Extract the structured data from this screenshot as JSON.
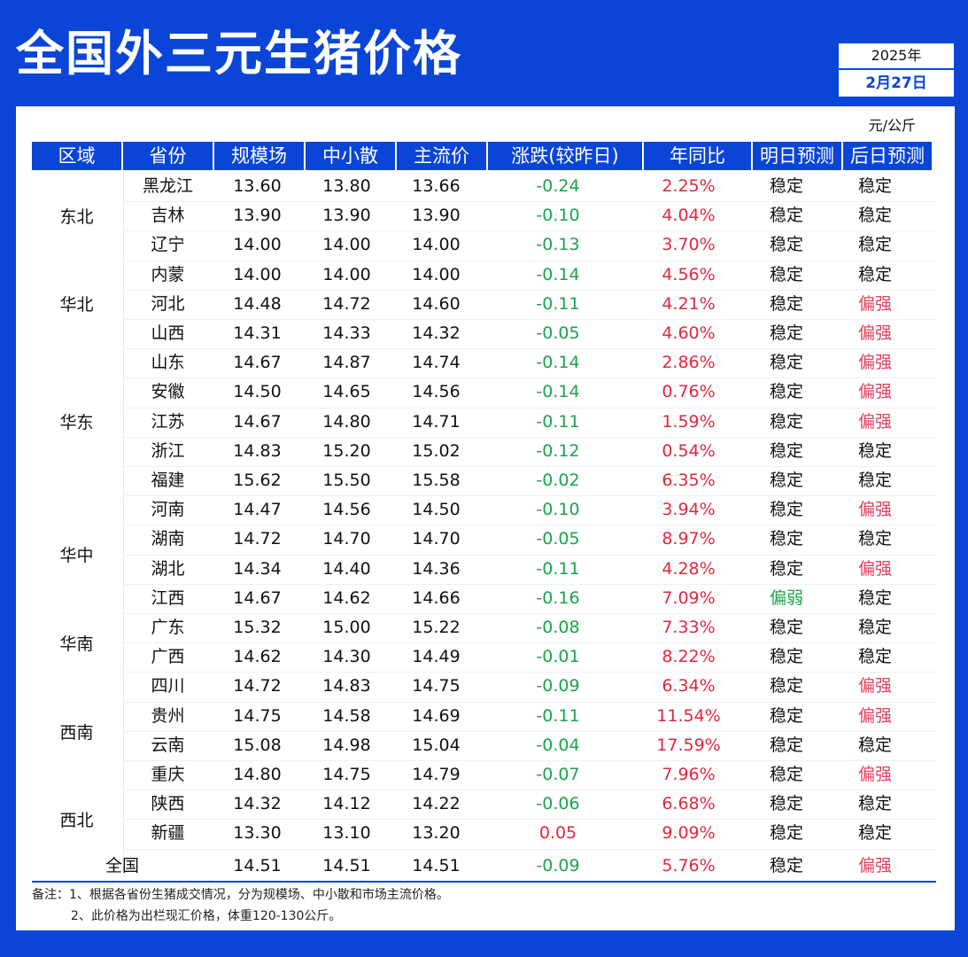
{
  "title": "全国外三元生猪价格",
  "date": {
    "year": "2025年",
    "day": "2月27日"
  },
  "unit": "元/公斤",
  "headers": [
    "区域",
    "省份",
    "规模场",
    "中小散",
    "主流价",
    "涨跌(较昨日)",
    "年同比",
    "明日预测",
    "后日预测"
  ],
  "regions": [
    {
      "name": "东北",
      "top": 36
    },
    {
      "name": "华北",
      "top": 135
    },
    {
      "name": "华东",
      "top": 268
    },
    {
      "name": "华中",
      "top": 418
    },
    {
      "name": "华南",
      "top": 518
    },
    {
      "name": "西南",
      "top": 618
    },
    {
      "name": "西北",
      "top": 717
    }
  ],
  "rows": [
    {
      "province": "黑龙江",
      "scale": "13.60",
      "small": "13.80",
      "main": "13.66",
      "change": "-0.24",
      "yoy": "2.25%",
      "tomorrow": "稳定",
      "after": "稳定"
    },
    {
      "province": "吉林",
      "scale": "13.90",
      "small": "13.90",
      "main": "13.90",
      "change": "-0.10",
      "yoy": "4.04%",
      "tomorrow": "稳定",
      "after": "稳定"
    },
    {
      "province": "辽宁",
      "scale": "14.00",
      "small": "14.00",
      "main": "14.00",
      "change": "-0.13",
      "yoy": "3.70%",
      "tomorrow": "稳定",
      "after": "稳定"
    },
    {
      "province": "内蒙",
      "scale": "14.00",
      "small": "14.00",
      "main": "14.00",
      "change": "-0.14",
      "yoy": "4.56%",
      "tomorrow": "稳定",
      "after": "稳定"
    },
    {
      "province": "河北",
      "scale": "14.48",
      "small": "14.72",
      "main": "14.60",
      "change": "-0.11",
      "yoy": "4.21%",
      "tomorrow": "稳定",
      "after": "偏强"
    },
    {
      "province": "山西",
      "scale": "14.31",
      "small": "14.33",
      "main": "14.32",
      "change": "-0.05",
      "yoy": "4.60%",
      "tomorrow": "稳定",
      "after": "偏强"
    },
    {
      "province": "山东",
      "scale": "14.67",
      "small": "14.87",
      "main": "14.74",
      "change": "-0.14",
      "yoy": "2.86%",
      "tomorrow": "稳定",
      "after": "偏强"
    },
    {
      "province": "安徽",
      "scale": "14.50",
      "small": "14.65",
      "main": "14.56",
      "change": "-0.14",
      "yoy": "0.76%",
      "tomorrow": "稳定",
      "after": "偏强"
    },
    {
      "province": "江苏",
      "scale": "14.67",
      "small": "14.80",
      "main": "14.71",
      "change": "-0.11",
      "yoy": "1.59%",
      "tomorrow": "稳定",
      "after": "偏强"
    },
    {
      "province": "浙江",
      "scale": "14.83",
      "small": "15.20",
      "main": "15.02",
      "change": "-0.12",
      "yoy": "0.54%",
      "tomorrow": "稳定",
      "after": "稳定"
    },
    {
      "province": "福建",
      "scale": "15.62",
      "small": "15.50",
      "main": "15.58",
      "change": "-0.02",
      "yoy": "6.35%",
      "tomorrow": "稳定",
      "after": "稳定"
    },
    {
      "province": "河南",
      "scale": "14.47",
      "small": "14.56",
      "main": "14.50",
      "change": "-0.10",
      "yoy": "3.94%",
      "tomorrow": "稳定",
      "after": "偏强"
    },
    {
      "province": "湖南",
      "scale": "14.72",
      "small": "14.70",
      "main": "14.70",
      "change": "-0.05",
      "yoy": "8.97%",
      "tomorrow": "稳定",
      "after": "稳定"
    },
    {
      "province": "湖北",
      "scale": "14.34",
      "small": "14.40",
      "main": "14.36",
      "change": "-0.11",
      "yoy": "4.28%",
      "tomorrow": "稳定",
      "after": "偏强"
    },
    {
      "province": "江西",
      "scale": "14.67",
      "small": "14.62",
      "main": "14.66",
      "change": "-0.16",
      "yoy": "7.09%",
      "tomorrow": "偏弱",
      "after": "稳定"
    },
    {
      "province": "广东",
      "scale": "15.32",
      "small": "15.00",
      "main": "15.22",
      "change": "-0.08",
      "yoy": "7.33%",
      "tomorrow": "稳定",
      "after": "稳定"
    },
    {
      "province": "广西",
      "scale": "14.62",
      "small": "14.30",
      "main": "14.49",
      "change": "-0.01",
      "yoy": "8.22%",
      "tomorrow": "稳定",
      "after": "稳定"
    },
    {
      "province": "四川",
      "scale": "14.72",
      "small": "14.83",
      "main": "14.75",
      "change": "-0.09",
      "yoy": "6.34%",
      "tomorrow": "稳定",
      "after": "偏强"
    },
    {
      "province": "贵州",
      "scale": "14.75",
      "small": "14.58",
      "main": "14.69",
      "change": "-0.11",
      "yoy": "11.54%",
      "tomorrow": "稳定",
      "after": "偏强"
    },
    {
      "province": "云南",
      "scale": "15.08",
      "small": "14.98",
      "main": "15.04",
      "change": "-0.04",
      "yoy": "17.59%",
      "tomorrow": "稳定",
      "after": "稳定"
    },
    {
      "province": "重庆",
      "scale": "14.80",
      "small": "14.75",
      "main": "14.79",
      "change": "-0.07",
      "yoy": "7.96%",
      "tomorrow": "稳定",
      "after": "偏强"
    },
    {
      "province": "陕西",
      "scale": "14.32",
      "small": "14.12",
      "main": "14.22",
      "change": "-0.06",
      "yoy": "6.68%",
      "tomorrow": "稳定",
      "after": "稳定"
    },
    {
      "province": "新疆",
      "scale": "13.30",
      "small": "13.10",
      "main": "13.20",
      "change": "0.05",
      "yoy": "9.09%",
      "tomorrow": "稳定",
      "after": "稳定"
    }
  ],
  "total": {
    "label": "全国",
    "scale": "14.51",
    "small": "14.51",
    "main": "14.51",
    "change": "-0.09",
    "yoy": "5.76%",
    "tomorrow": "稳定",
    "after": "偏强"
  },
  "notes": [
    "备注：1、根据各省份生猪成交情况，分为规模场、中小散和市场主流价格。",
    "2、此价格为出栏现汇价格，体重120-130公斤。"
  ]
}
